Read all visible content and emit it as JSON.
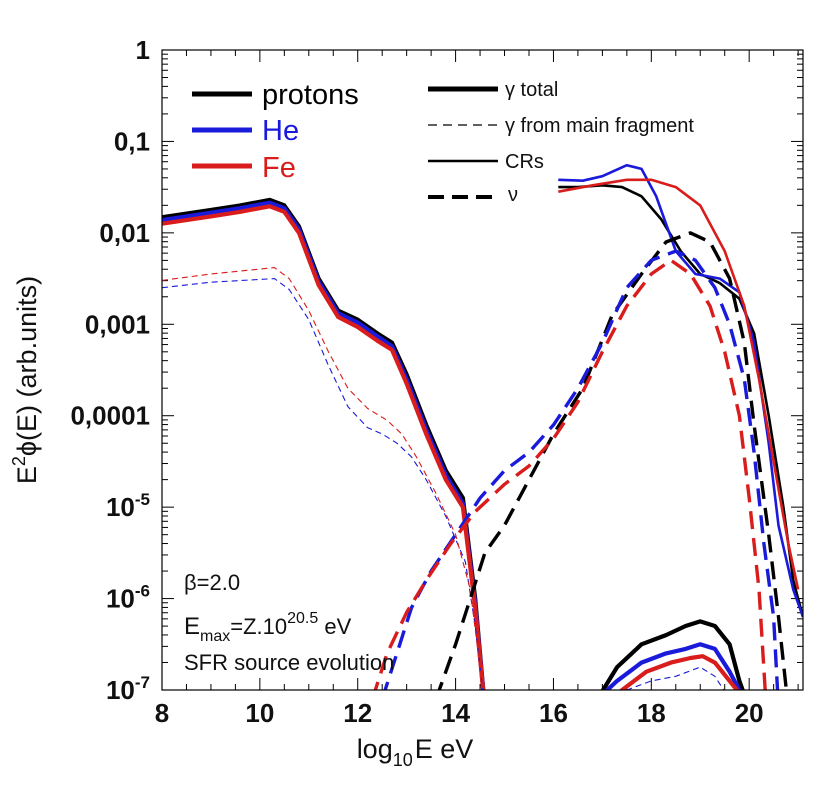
{
  "chart_data": {
    "type": "line",
    "title": "",
    "xlabel": {
      "base": "log",
      "sub": "10",
      "rest": "E eV"
    },
    "ylabel": {
      "pre": "E",
      "sup": "2",
      "rest": "ϕ(E) (arb.units)"
    },
    "xlim": [
      8,
      21.1
    ],
    "ylim_log10": [
      -7,
      0
    ],
    "xticks": [
      8,
      10,
      12,
      14,
      16,
      18,
      20
    ],
    "xtick_labels": [
      "8",
      "10",
      "12",
      "14",
      "16",
      "18",
      "20"
    ],
    "yticks_log10": [
      0,
      -1,
      -2,
      -3,
      -4,
      -5,
      -6,
      -7
    ],
    "ytick_labels": [
      {
        "text": "1"
      },
      {
        "text": "0,1"
      },
      {
        "text": "0,01"
      },
      {
        "text": "0,001"
      },
      {
        "text": "0,0001"
      },
      {
        "text": "10",
        "sup": "-5"
      },
      {
        "text": "10",
        "sup": "-6"
      },
      {
        "text": "10",
        "sup": "-7"
      }
    ],
    "colors": {
      "protons": "#000000",
      "He": "#1a1adb",
      "Fe": "#d91c1c"
    },
    "legend_species": [
      {
        "label": "protons",
        "color": "#000000"
      },
      {
        "label": "He",
        "color": "#1a1adb"
      },
      {
        "label": "Fe",
        "color": "#d91c1c"
      }
    ],
    "legend_types": [
      {
        "label": "γ total",
        "style": "thick-solid"
      },
      {
        "label": "γ from main fragment",
        "style": "thin-dashed"
      },
      {
        "label": "CRs",
        "style": "thin-solid"
      },
      {
        "label": "ν",
        "style": "thick-dashed"
      }
    ],
    "annotations": {
      "beta": "β=2.0",
      "emax_pre": "E",
      "emax_sub": "max",
      "emax_mid": "=Z.10",
      "emax_sup": "20.5",
      "emax_post": " eV",
      "sfr": "SFR source evolution"
    },
    "series": [
      {
        "name": "protons γ total",
        "species": "protons",
        "style": "thick-solid",
        "points": [
          [
            8,
            -1.83
          ],
          [
            9,
            -1.75
          ],
          [
            9.6,
            -1.7
          ],
          [
            10.2,
            -1.64
          ],
          [
            10.5,
            -1.7
          ],
          [
            10.8,
            -1.93
          ],
          [
            11.2,
            -2.5
          ],
          [
            11.6,
            -2.85
          ],
          [
            12,
            -2.95
          ],
          [
            12.4,
            -3.1
          ],
          [
            12.7,
            -3.2
          ],
          [
            13,
            -3.55
          ],
          [
            13.4,
            -4.1
          ],
          [
            13.8,
            -4.6
          ],
          [
            14.15,
            -4.9
          ],
          [
            14.4,
            -6
          ],
          [
            14.6,
            -7.2
          ]
        ]
      },
      {
        "name": "He γ total",
        "species": "He",
        "style": "thick-solid",
        "points": [
          [
            8,
            -1.86
          ],
          [
            9,
            -1.78
          ],
          [
            9.6,
            -1.73
          ],
          [
            10.2,
            -1.67
          ],
          [
            10.5,
            -1.73
          ],
          [
            10.8,
            -1.96
          ],
          [
            11.2,
            -2.53
          ],
          [
            11.6,
            -2.88
          ],
          [
            12,
            -2.98
          ],
          [
            12.4,
            -3.13
          ],
          [
            12.7,
            -3.24
          ],
          [
            13,
            -3.6
          ],
          [
            13.4,
            -4.15
          ],
          [
            13.8,
            -4.65
          ],
          [
            14.15,
            -4.96
          ],
          [
            14.4,
            -6.05
          ],
          [
            14.6,
            -7.2
          ]
        ]
      },
      {
        "name": "Fe γ total",
        "species": "Fe",
        "style": "thick-solid",
        "points": [
          [
            8,
            -1.9
          ],
          [
            9,
            -1.82
          ],
          [
            9.6,
            -1.77
          ],
          [
            10.2,
            -1.71
          ],
          [
            10.5,
            -1.77
          ],
          [
            10.8,
            -2
          ],
          [
            11.2,
            -2.57
          ],
          [
            11.6,
            -2.92
          ],
          [
            12,
            -3.03
          ],
          [
            12.4,
            -3.18
          ],
          [
            12.7,
            -3.28
          ],
          [
            13,
            -3.65
          ],
          [
            13.4,
            -4.2
          ],
          [
            13.8,
            -4.7
          ],
          [
            14.15,
            -5.0
          ],
          [
            14.4,
            -6.1
          ],
          [
            14.6,
            -7.2
          ]
        ]
      },
      {
        "name": "protons γ total (high E)",
        "species": "protons",
        "style": "thick-solid",
        "points": [
          [
            16.9,
            -7.1
          ],
          [
            17.3,
            -6.75
          ],
          [
            17.8,
            -6.5
          ],
          [
            18.3,
            -6.4
          ],
          [
            18.7,
            -6.3
          ],
          [
            19,
            -6.25
          ],
          [
            19.3,
            -6.3
          ],
          [
            19.6,
            -6.5
          ],
          [
            19.8,
            -6.9
          ],
          [
            20,
            -7.2
          ]
        ]
      },
      {
        "name": "He γ total (high E)",
        "species": "He",
        "style": "thick-solid",
        "points": [
          [
            16.8,
            -7.15
          ],
          [
            17.3,
            -6.9
          ],
          [
            17.8,
            -6.7
          ],
          [
            18.3,
            -6.6
          ],
          [
            18.7,
            -6.55
          ],
          [
            19,
            -6.5
          ],
          [
            19.3,
            -6.55
          ],
          [
            19.6,
            -6.8
          ],
          [
            19.9,
            -7.1
          ],
          [
            20.3,
            -7.2
          ]
        ]
      },
      {
        "name": "Fe γ total (high E)",
        "species": "Fe",
        "style": "thick-solid",
        "points": [
          [
            17,
            -7.2
          ],
          [
            17.4,
            -7
          ],
          [
            17.9,
            -6.8
          ],
          [
            18.4,
            -6.7
          ],
          [
            18.8,
            -6.65
          ],
          [
            19.05,
            -6.63
          ],
          [
            19.3,
            -6.7
          ],
          [
            19.6,
            -6.9
          ],
          [
            19.9,
            -7.1
          ],
          [
            20.2,
            -7.2
          ]
        ]
      },
      {
        "name": "He γ from main fragment",
        "species": "He",
        "style": "thin-dashed",
        "points": [
          [
            8,
            -2.6
          ],
          [
            9,
            -2.54
          ],
          [
            10.3,
            -2.5
          ],
          [
            10.6,
            -2.62
          ],
          [
            11,
            -2.95
          ],
          [
            11.4,
            -3.45
          ],
          [
            11.8,
            -3.9
          ],
          [
            12.2,
            -4.13
          ],
          [
            12.5,
            -4.2
          ],
          [
            12.8,
            -4.3
          ],
          [
            13.1,
            -4.45
          ],
          [
            13.4,
            -4.7
          ],
          [
            13.8,
            -5.1
          ],
          [
            14.2,
            -5.6
          ],
          [
            14.4,
            -6.3
          ],
          [
            14.6,
            -7.2
          ]
        ]
      },
      {
        "name": "Fe γ from main fragment",
        "species": "Fe",
        "style": "thin-dashed",
        "points": [
          [
            8,
            -2.52
          ],
          [
            9,
            -2.45
          ],
          [
            10.3,
            -2.38
          ],
          [
            10.6,
            -2.5
          ],
          [
            11,
            -2.85
          ],
          [
            11.4,
            -3.3
          ],
          [
            11.8,
            -3.7
          ],
          [
            12.2,
            -3.92
          ],
          [
            12.6,
            -4.05
          ],
          [
            12.9,
            -4.2
          ],
          [
            13.2,
            -4.45
          ],
          [
            13.6,
            -4.85
          ],
          [
            14,
            -5.3
          ],
          [
            14.3,
            -5.9
          ],
          [
            14.6,
            -7.2
          ]
        ]
      },
      {
        "name": "He γ from main fragment (high E)",
        "species": "He",
        "style": "thin-dashed",
        "points": [
          [
            17,
            -7.2
          ],
          [
            17.5,
            -7
          ],
          [
            18,
            -6.9
          ],
          [
            18.5,
            -6.85
          ],
          [
            19,
            -6.75
          ],
          [
            19.3,
            -6.85
          ],
          [
            19.6,
            -7.1
          ],
          [
            19.8,
            -7.2
          ]
        ]
      },
      {
        "name": "protons CRs",
        "species": "protons",
        "style": "thin-solid",
        "points": [
          [
            16.1,
            -1.5
          ],
          [
            16.5,
            -1.5
          ],
          [
            17,
            -1.48
          ],
          [
            17.4,
            -1.5
          ],
          [
            17.8,
            -1.6
          ],
          [
            18.2,
            -1.85
          ],
          [
            18.6,
            -2.2
          ],
          [
            19,
            -2.45
          ],
          [
            19.4,
            -2.55
          ],
          [
            19.8,
            -2.72
          ],
          [
            20.1,
            -3.1
          ],
          [
            20.4,
            -4
          ],
          [
            20.7,
            -5
          ],
          [
            20.9,
            -5.8
          ],
          [
            21.1,
            -6.2
          ]
        ]
      },
      {
        "name": "He CRs",
        "species": "He",
        "style": "thin-solid",
        "points": [
          [
            16.1,
            -1.42
          ],
          [
            16.6,
            -1.43
          ],
          [
            17,
            -1.38
          ],
          [
            17.5,
            -1.26
          ],
          [
            17.8,
            -1.3
          ],
          [
            18.1,
            -1.6
          ],
          [
            18.5,
            -2.2
          ],
          [
            18.9,
            -2.45
          ],
          [
            19.4,
            -2.5
          ],
          [
            19.8,
            -2.65
          ],
          [
            20.1,
            -3.2
          ],
          [
            20.4,
            -4.3
          ],
          [
            20.6,
            -5.2
          ],
          [
            20.9,
            -5.9
          ],
          [
            21.1,
            -6.2
          ]
        ]
      },
      {
        "name": "Fe CRs",
        "species": "Fe",
        "style": "thin-solid",
        "points": [
          [
            16.1,
            -1.55
          ],
          [
            16.8,
            -1.48
          ],
          [
            17.5,
            -1.42
          ],
          [
            18,
            -1.42
          ],
          [
            18.5,
            -1.5
          ],
          [
            19,
            -1.7
          ],
          [
            19.5,
            -2.2
          ],
          [
            19.9,
            -2.8
          ],
          [
            20.2,
            -3.6
          ],
          [
            20.5,
            -4.5
          ],
          [
            20.8,
            -5.4
          ],
          [
            21,
            -5.9
          ]
        ]
      },
      {
        "name": "protons ν",
        "species": "protons",
        "style": "thick-dashed",
        "points": [
          [
            13.6,
            -7.1
          ],
          [
            14,
            -6.5
          ],
          [
            14.3,
            -6
          ],
          [
            14.6,
            -5.5
          ],
          [
            15,
            -5.2
          ],
          [
            15.5,
            -4.7
          ],
          [
            16,
            -4.2
          ],
          [
            16.6,
            -3.7
          ],
          [
            17.2,
            -2.9
          ],
          [
            17.8,
            -2.45
          ],
          [
            18.3,
            -2.1
          ],
          [
            18.8,
            -2.0
          ],
          [
            19.2,
            -2.1
          ],
          [
            19.6,
            -2.5
          ],
          [
            19.9,
            -3.2
          ],
          [
            20.1,
            -4.1
          ],
          [
            20.4,
            -5.3
          ],
          [
            20.6,
            -6.2
          ],
          [
            20.8,
            -7.2
          ]
        ]
      },
      {
        "name": "He ν",
        "species": "He",
        "style": "thick-dashed",
        "points": [
          [
            12.5,
            -7.1
          ],
          [
            12.8,
            -6.6
          ],
          [
            13.1,
            -6.1
          ],
          [
            13.5,
            -5.7
          ],
          [
            14,
            -5.3
          ],
          [
            14.5,
            -4.9
          ],
          [
            15,
            -4.6
          ],
          [
            15.5,
            -4.4
          ],
          [
            16,
            -4.1
          ],
          [
            16.5,
            -3.7
          ],
          [
            17,
            -3.2
          ],
          [
            17.5,
            -2.6
          ],
          [
            18,
            -2.3
          ],
          [
            18.5,
            -2.2
          ],
          [
            18.9,
            -2.3
          ],
          [
            19.3,
            -2.6
          ],
          [
            19.6,
            -3.0
          ],
          [
            19.9,
            -3.6
          ],
          [
            20.1,
            -4.4
          ],
          [
            20.3,
            -5.4
          ],
          [
            20.5,
            -6.2
          ],
          [
            20.6,
            -7.2
          ]
        ]
      },
      {
        "name": "Fe ν",
        "species": "Fe",
        "style": "thick-dashed",
        "points": [
          [
            12.3,
            -7.1
          ],
          [
            12.6,
            -6.6
          ],
          [
            13,
            -6.15
          ],
          [
            13.4,
            -5.8
          ],
          [
            13.9,
            -5.4
          ],
          [
            14.4,
            -5.05
          ],
          [
            15,
            -4.75
          ],
          [
            15.5,
            -4.55
          ],
          [
            16,
            -4.25
          ],
          [
            16.5,
            -3.85
          ],
          [
            17,
            -3.3
          ],
          [
            17.5,
            -2.8
          ],
          [
            18,
            -2.45
          ],
          [
            18.4,
            -2.3
          ],
          [
            18.8,
            -2.45
          ],
          [
            19.2,
            -2.8
          ],
          [
            19.5,
            -3.3
          ],
          [
            19.8,
            -4.0
          ],
          [
            20,
            -4.9
          ],
          [
            20.2,
            -5.9
          ],
          [
            20.35,
            -7.2
          ]
        ]
      }
    ]
  }
}
